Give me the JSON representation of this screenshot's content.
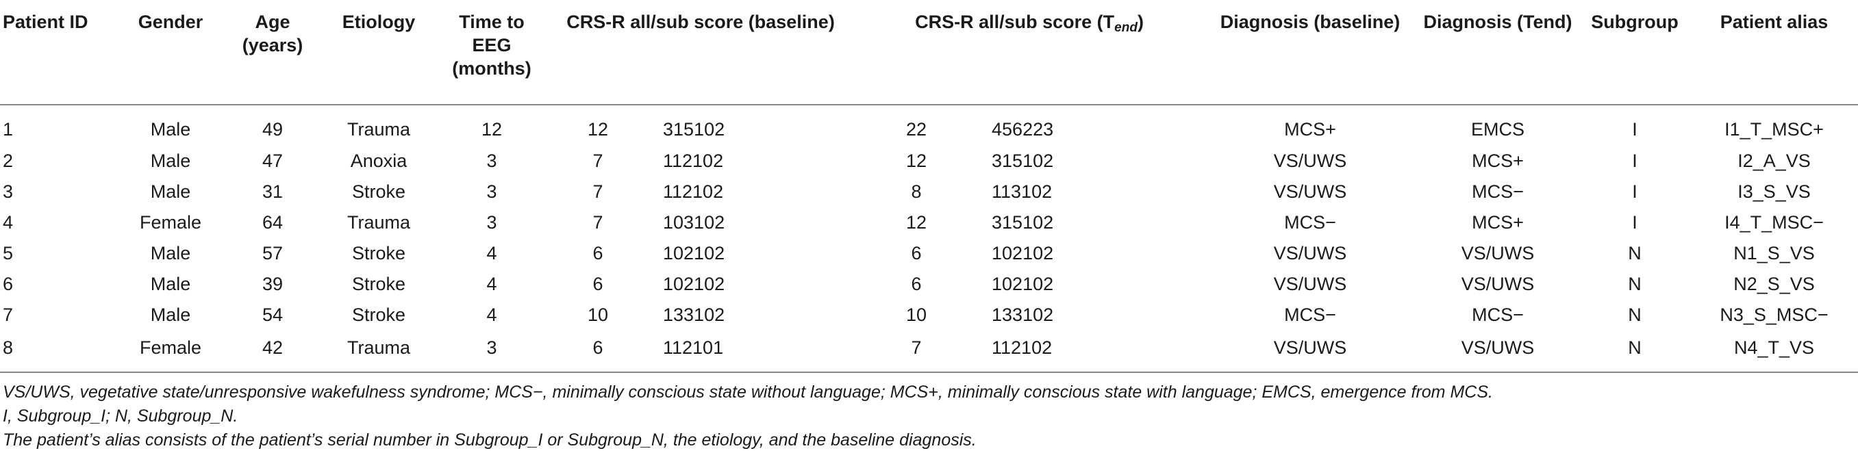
{
  "table": {
    "headers": {
      "patient_id": "Patient ID",
      "gender": "Gender",
      "age_line1": "Age",
      "age_line2": "(years)",
      "etiology": "Etiology",
      "time_line1": "Time to",
      "time_line2": "EEG",
      "time_line3": "(months)",
      "crs_baseline": "CRS-R all/sub score (baseline)",
      "crs_tend_prefix": "CRS-R all/sub score (T",
      "crs_tend_sub": "end",
      "crs_tend_suffix": ")",
      "diag_baseline": "Diagnosis (baseline)",
      "diag_tend": "Diagnosis (Tend)",
      "subgroup": "Subgroup",
      "alias": "Patient alias"
    },
    "rows": [
      {
        "id": "1",
        "gender": "Male",
        "age": "49",
        "etiology": "Trauma",
        "time": "12",
        "crs_base_all": "12",
        "crs_base_sub": "315102",
        "crs_tend_all": "22",
        "crs_tend_sub": "456223",
        "diag_base": "MCS+",
        "diag_tend": "EMCS",
        "subgroup": "I",
        "alias": "I1_T_MSC+"
      },
      {
        "id": "2",
        "gender": "Male",
        "age": "47",
        "etiology": "Anoxia",
        "time": "3",
        "crs_base_all": "7",
        "crs_base_sub": "112102",
        "crs_tend_all": "12",
        "crs_tend_sub": "315102",
        "diag_base": "VS/UWS",
        "diag_tend": "MCS+",
        "subgroup": "I",
        "alias": "I2_A_VS"
      },
      {
        "id": "3",
        "gender": "Male",
        "age": "31",
        "etiology": "Stroke",
        "time": "3",
        "crs_base_all": "7",
        "crs_base_sub": "112102",
        "crs_tend_all": "8",
        "crs_tend_sub": "113102",
        "diag_base": "VS/UWS",
        "diag_tend": "MCS−",
        "subgroup": "I",
        "alias": "I3_S_VS"
      },
      {
        "id": "4",
        "gender": "Female",
        "age": "64",
        "etiology": "Trauma",
        "time": "3",
        "crs_base_all": "7",
        "crs_base_sub": "103102",
        "crs_tend_all": "12",
        "crs_tend_sub": "315102",
        "diag_base": "MCS−",
        "diag_tend": "MCS+",
        "subgroup": "I",
        "alias": "I4_T_MSC−"
      },
      {
        "id": "5",
        "gender": "Male",
        "age": "57",
        "etiology": "Stroke",
        "time": "4",
        "crs_base_all": "6",
        "crs_base_sub": "102102",
        "crs_tend_all": "6",
        "crs_tend_sub": "102102",
        "diag_base": "VS/UWS",
        "diag_tend": "VS/UWS",
        "subgroup": "N",
        "alias": "N1_S_VS"
      },
      {
        "id": "6",
        "gender": "Male",
        "age": "39",
        "etiology": "Stroke",
        "time": "4",
        "crs_base_all": "6",
        "crs_base_sub": "102102",
        "crs_tend_all": "6",
        "crs_tend_sub": "102102",
        "diag_base": "VS/UWS",
        "diag_tend": "VS/UWS",
        "subgroup": "N",
        "alias": "N2_S_VS"
      },
      {
        "id": "7",
        "gender": "Male",
        "age": "54",
        "etiology": "Stroke",
        "time": "4",
        "crs_base_all": "10",
        "crs_base_sub": "133102",
        "crs_tend_all": "10",
        "crs_tend_sub": "133102",
        "diag_base": "MCS−",
        "diag_tend": "MCS−",
        "subgroup": "N",
        "alias": "N3_S_MSC−"
      },
      {
        "id": "8",
        "gender": "Female",
        "age": "42",
        "etiology": "Trauma",
        "time": "3",
        "crs_base_all": "6",
        "crs_base_sub": "112101",
        "crs_tend_all": "7",
        "crs_tend_sub": "112102",
        "diag_base": "VS/UWS",
        "diag_tend": "VS/UWS",
        "subgroup": "N",
        "alias": "N4_T_VS"
      }
    ]
  },
  "notes": [
    "VS/UWS, vegetative state/unresponsive wakefulness syndrome; MCS−, minimally conscious state without language; MCS+, minimally conscious state with language; EMCS, emergence from MCS.",
    "I, Subgroup_I; N, Subgroup_N.",
    "The patient’s alias consists of the patient’s serial number in Subgroup_I or Subgroup_N, the etiology, and the baseline diagnosis."
  ]
}
